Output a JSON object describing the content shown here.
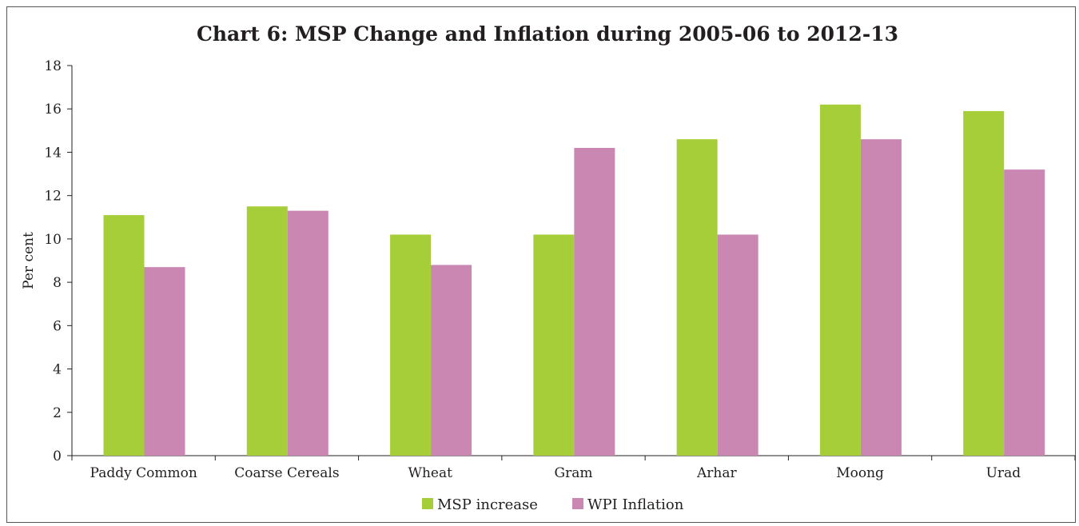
{
  "chart_data": {
    "type": "bar",
    "title": "Chart 6: MSP Change and Inflation during 2005-06 to 2012-13",
    "xlabel": "",
    "ylabel": "Per cent",
    "ylim": [
      0,
      18
    ],
    "yticks": [
      0,
      2,
      4,
      6,
      8,
      10,
      12,
      14,
      16,
      18
    ],
    "categories": [
      "Paddy Common",
      "Coarse Cereals",
      "Wheat",
      "Gram",
      "Arhar",
      "Moong",
      "Urad"
    ],
    "series": [
      {
        "name": "MSP increase",
        "color": "#a6ce39",
        "values": [
          11.1,
          11.5,
          10.2,
          10.2,
          14.6,
          16.2,
          15.9
        ]
      },
      {
        "name": "WPI Inflation",
        "color": "#c987b1",
        "values": [
          8.7,
          11.3,
          8.8,
          14.2,
          10.2,
          14.6,
          13.2
        ]
      }
    ],
    "grid": false,
    "legend": "bottom-center"
  }
}
